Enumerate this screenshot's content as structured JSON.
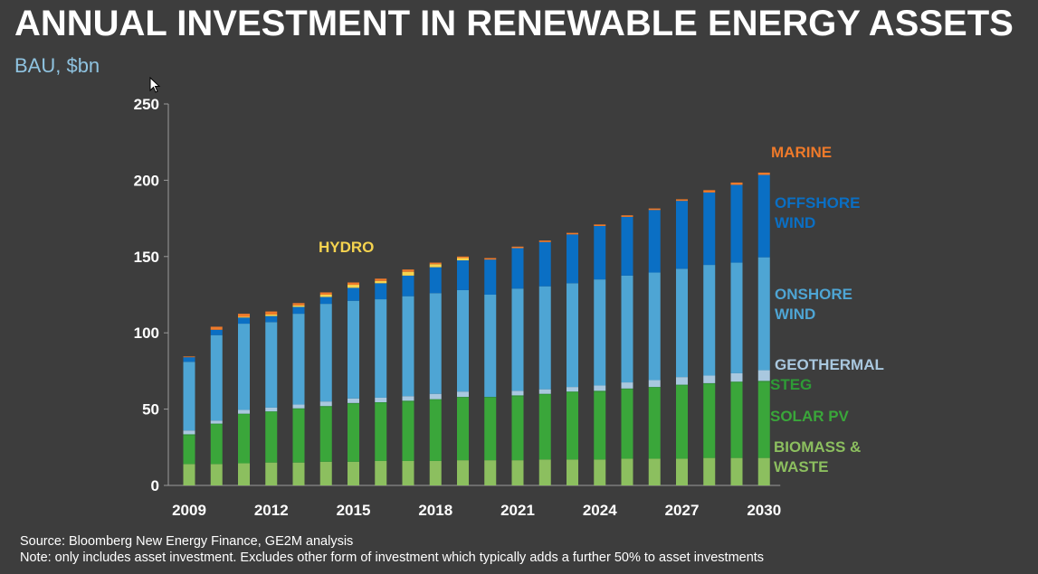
{
  "header": {
    "title": "ANNUAL INVESTMENT IN RENEWABLE ENERGY ASSETS",
    "subtitle": "BAU, $bn"
  },
  "footer": {
    "source": "Source: Bloomberg New Energy Finance, GE2M analysis",
    "note": "Note: only includes asset investment. Excludes other form of investment which typically adds a further 50% to asset investments"
  },
  "colors": {
    "background": "#3d3d3d",
    "biomass": "#8cbf5f",
    "solar_pv": "#3aa63a",
    "steg": "#2e9b36",
    "geothermal": "#a9c8df",
    "onshore": "#4ea5d4",
    "offshore": "#0a6fc4",
    "hydro": "#f5d34f",
    "marine": "#ef7a2a"
  },
  "chart_data": {
    "type": "bar",
    "stacked": true,
    "ylim": [
      0,
      250
    ],
    "yticks": [
      0,
      50,
      100,
      150,
      200,
      250
    ],
    "x": [
      2009,
      2010,
      2011,
      2012,
      2013,
      2014,
      2015,
      2016,
      2017,
      2018,
      2019,
      2020,
      2021,
      2022,
      2023,
      2024,
      2025,
      2026,
      2027,
      2028,
      2029,
      2030
    ],
    "xtick_labels": [
      "2009",
      "2012",
      "2015",
      "2018",
      "2021",
      "2024",
      "2027",
      "2030"
    ],
    "series": [
      {
        "name": "BIOMASS & WASTE",
        "color": "#8cbf5f",
        "values": [
          14,
          14,
          14.5,
          15,
          15,
          15.5,
          15.5,
          16,
          16,
          16,
          16.5,
          16.5,
          16.5,
          17,
          17,
          17,
          17.5,
          17.5,
          17.5,
          18,
          18,
          18
        ]
      },
      {
        "name": "SOLAR PV",
        "color": "#3aa63a",
        "values": [
          19,
          26,
          32,
          33,
          35,
          36,
          38,
          38,
          39,
          40,
          41,
          41,
          42,
          42.5,
          44,
          44.5,
          45.5,
          46.5,
          48,
          48.5,
          49.5,
          50
        ]
      },
      {
        "name": "STEG",
        "color": "#2e9b36",
        "values": [
          0.5,
          0.5,
          0.5,
          0.5,
          0.5,
          0.5,
          0.5,
          0.5,
          0.5,
          0.5,
          0.5,
          0.5,
          0.5,
          0.5,
          0.5,
          0.5,
          0.5,
          0.5,
          0.5,
          0.5,
          0.5,
          0.5
        ]
      },
      {
        "name": "GEOTHERMAL",
        "color": "#a9c8df",
        "values": [
          2.5,
          2,
          2.5,
          2.5,
          2.5,
          3,
          3,
          3,
          3,
          3.5,
          3.5,
          0,
          3,
          3,
          3,
          3.5,
          4,
          4.5,
          5,
          5,
          5.5,
          7
        ]
      },
      {
        "name": "ONSHORE WIND",
        "color": "#4ea5d4",
        "values": [
          45,
          56,
          56.5,
          56,
          59.5,
          64,
          64,
          64.5,
          65.5,
          66,
          66.5,
          67,
          67,
          67.5,
          68,
          69.5,
          70,
          70.5,
          71,
          72.5,
          72.5,
          74
        ]
      },
      {
        "name": "OFFSHORE WIND",
        "color": "#0a6fc4",
        "values": [
          3,
          3.5,
          4,
          4,
          4.5,
          4.5,
          8.5,
          10.5,
          13.5,
          17,
          19.5,
          23,
          26.5,
          29,
          32,
          35,
          38.5,
          41,
          44.5,
          47.5,
          51,
          54
        ]
      },
      {
        "name": "HYDRO",
        "color": "#f5d34f",
        "values": [
          0,
          0,
          0.5,
          1,
          1,
          1.5,
          2,
          1.5,
          2.5,
          2,
          1.5,
          0,
          0,
          0,
          0,
          0,
          0,
          0,
          0,
          0,
          0,
          0
        ]
      },
      {
        "name": "MARINE",
        "color": "#ef7a2a",
        "values": [
          0.5,
          2,
          2,
          2,
          1.5,
          1.5,
          1.5,
          1.5,
          1.5,
          1,
          1,
          1,
          1,
          1,
          1,
          1,
          1,
          1,
          1,
          1.5,
          1.5,
          1.5
        ]
      }
    ],
    "annotations": [
      {
        "text": "HYDRO",
        "color": "#f5d34f"
      },
      {
        "text": "MARINE",
        "color": "#ef7a2a"
      },
      {
        "text": "OFFSHORE",
        "text2": "WIND",
        "color": "#0a6fc4"
      },
      {
        "text": "ONSHORE",
        "text2": "WIND",
        "color": "#4ea5d4"
      },
      {
        "text": "GEOTHERMAL",
        "color": "#a9c8df"
      },
      {
        "text": "STEG",
        "color": "#2e9b36"
      },
      {
        "text": "SOLAR PV",
        "color": "#3aa63a"
      },
      {
        "text": "BIOMASS &",
        "text2": "WASTE",
        "color": "#8cbf5f"
      }
    ]
  }
}
